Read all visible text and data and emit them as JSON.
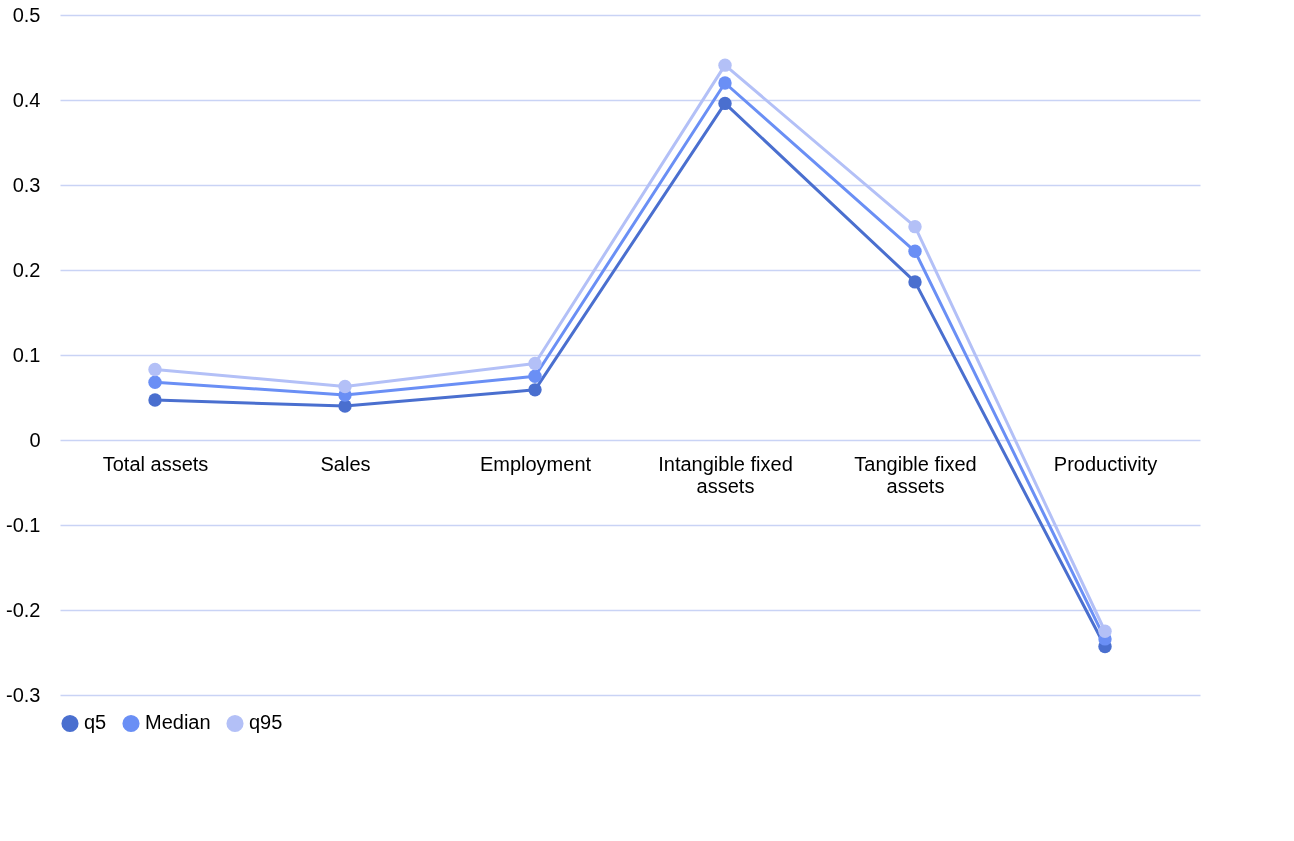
{
  "chart_data": {
    "type": "line",
    "categories": [
      "Total assets",
      "Sales",
      "Employment",
      "Intangible fixed assets",
      "Tangible fixed assets",
      "Productivity"
    ],
    "series": [
      {
        "name": "q5",
        "color": "#4a6fcf",
        "values": [
          0.047,
          0.04,
          0.059,
          0.396,
          0.186,
          -0.243
        ]
      },
      {
        "name": "Median",
        "color": "#6a8ff5",
        "values": [
          0.068,
          0.053,
          0.075,
          0.42,
          0.222,
          -0.234
        ]
      },
      {
        "name": "q95",
        "color": "#b3c0f7",
        "values": [
          0.083,
          0.063,
          0.09,
          0.441,
          0.251,
          -0.225
        ]
      }
    ],
    "ylim": [
      -0.3,
      0.5
    ],
    "yticks": [
      -0.3,
      -0.2,
      -0.1,
      0,
      0.1,
      0.2,
      0.3,
      0.4,
      0.5
    ],
    "grid": "y",
    "legend": "bottom",
    "marker": "circle",
    "line_style": "solid"
  }
}
